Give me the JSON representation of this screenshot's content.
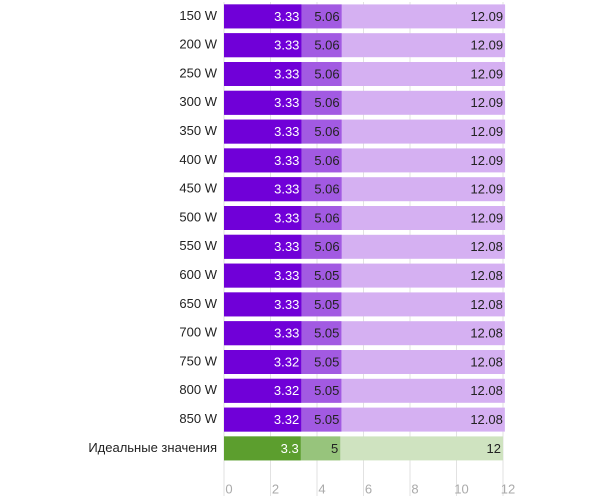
{
  "chart_data": {
    "type": "overlap_bar",
    "categories": [
      "150 W",
      "200 W",
      "250 W",
      "300 W",
      "350 W",
      "400 W",
      "450 W",
      "500 W",
      "550 W",
      "600 W",
      "650 W",
      "700 W",
      "750 W",
      "800 W",
      "850 W",
      "Идеальные значения"
    ],
    "series": [
      {
        "colors": [
          "#7000d8",
          "#7000d8",
          "#7000d8",
          "#7000d8",
          "#7000d8",
          "#7000d8",
          "#7000d8",
          "#7000d8",
          "#7000d8",
          "#7000d8",
          "#7000d8",
          "#7000d8",
          "#7000d8",
          "#7000d8",
          "#7000d8",
          "#5c9e2e"
        ],
        "values": [
          3.33,
          3.33,
          3.33,
          3.33,
          3.33,
          3.33,
          3.33,
          3.33,
          3.33,
          3.33,
          3.33,
          3.33,
          3.32,
          3.32,
          3.32,
          3.3
        ]
      },
      {
        "colors": [
          "#a25ae2",
          "#a25ae2",
          "#a25ae2",
          "#a25ae2",
          "#a25ae2",
          "#a25ae2",
          "#a25ae2",
          "#a25ae2",
          "#a25ae2",
          "#a25ae2",
          "#a25ae2",
          "#a25ae2",
          "#a25ae2",
          "#a25ae2",
          "#a25ae2",
          "#97c47c"
        ],
        "values": [
          5.06,
          5.06,
          5.06,
          5.06,
          5.06,
          5.06,
          5.06,
          5.06,
          5.06,
          5.05,
          5.05,
          5.05,
          5.05,
          5.05,
          5.05,
          5
        ]
      },
      {
        "colors": [
          "#d5b0f2",
          "#d5b0f2",
          "#d5b0f2",
          "#d5b0f2",
          "#d5b0f2",
          "#d5b0f2",
          "#d5b0f2",
          "#d5b0f2",
          "#d5b0f2",
          "#d5b0f2",
          "#d5b0f2",
          "#d5b0f2",
          "#d5b0f2",
          "#d5b0f2",
          "#d5b0f2",
          "#cfe3c0"
        ],
        "values": [
          12.09,
          12.09,
          12.09,
          12.09,
          12.09,
          12.09,
          12.09,
          12.09,
          12.08,
          12.08,
          12.08,
          12.08,
          12.08,
          12.08,
          12.08,
          12
        ]
      }
    ],
    "xlim": [
      0,
      12
    ],
    "xticks": [
      0,
      2,
      4,
      6,
      8,
      10,
      12
    ],
    "grid": true
  }
}
